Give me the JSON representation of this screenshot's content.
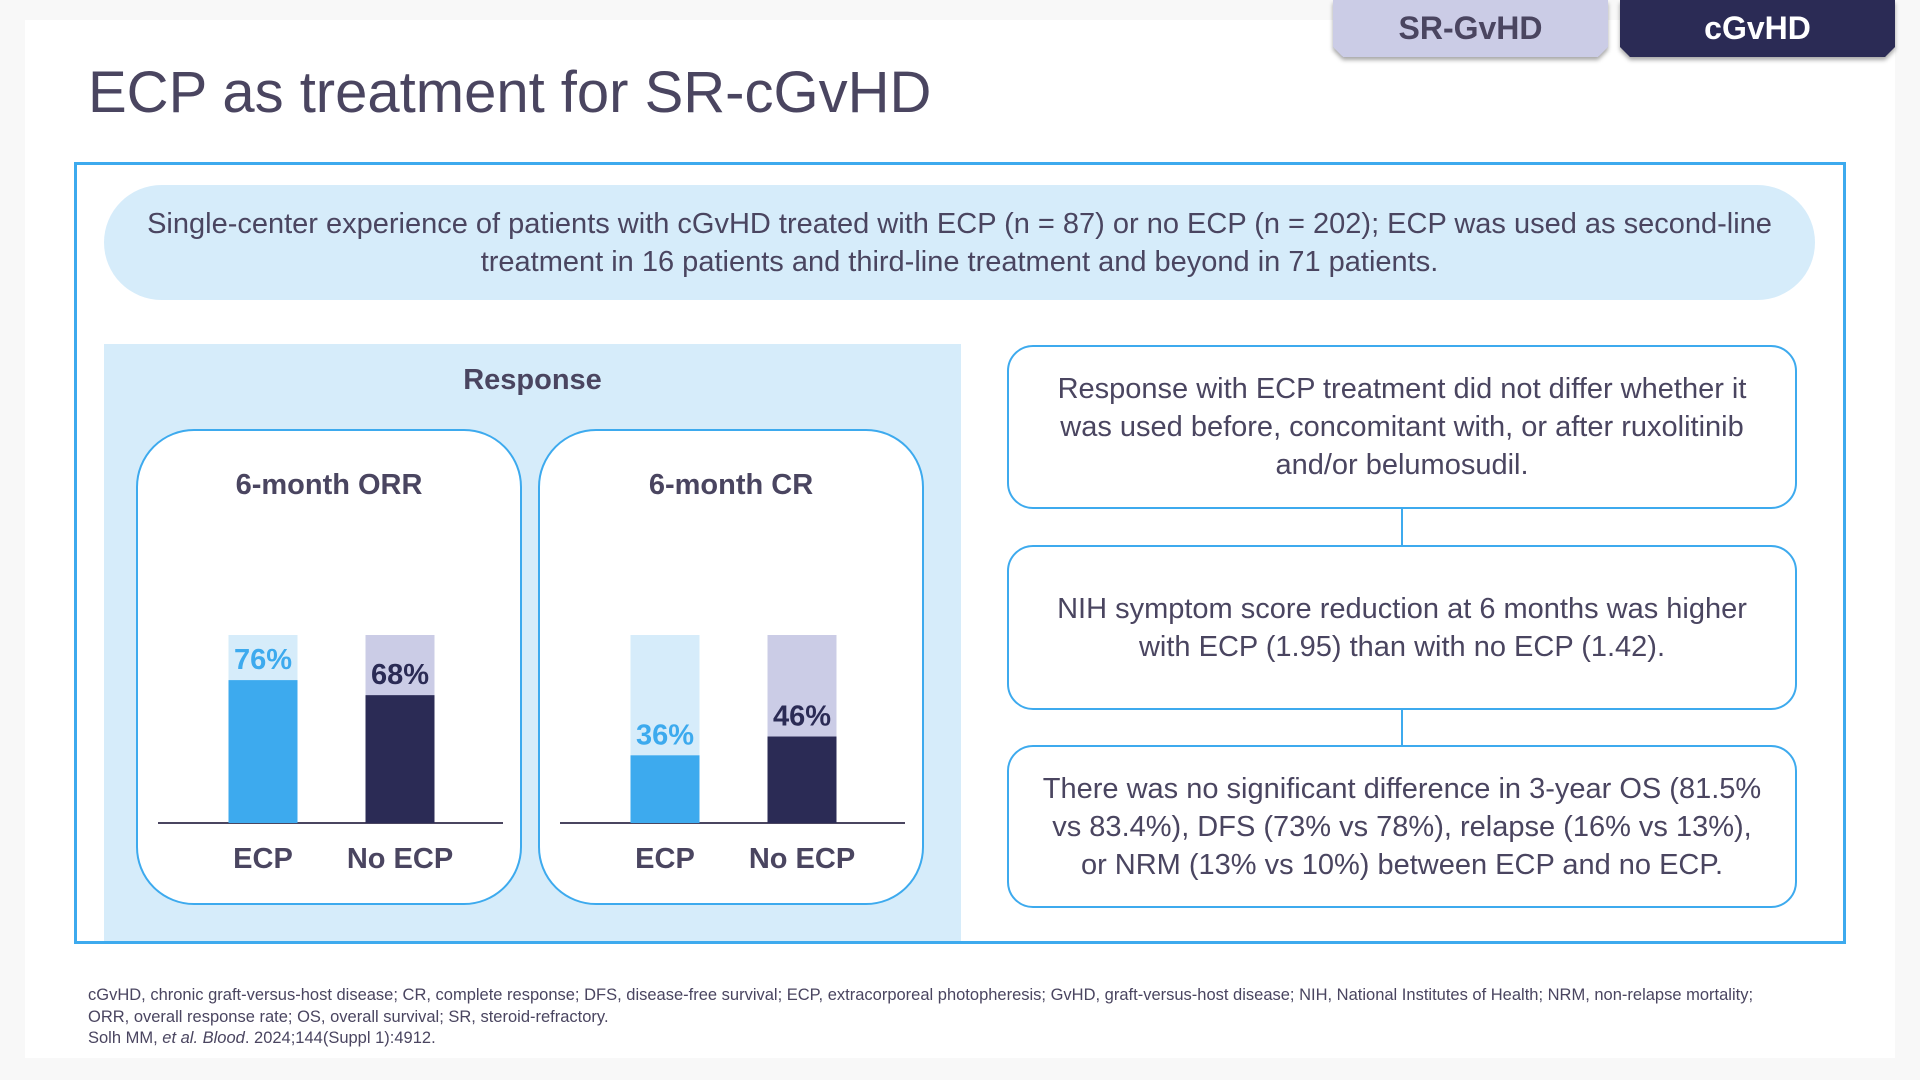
{
  "tabs": [
    {
      "label": "SR-GvHD",
      "active": false
    },
    {
      "label": "cGvHD",
      "active": true
    }
  ],
  "title": "ECP as treatment for SR-cGvHD",
  "banner": "Single-center experience of patients with cGvHD treated with ECP (n = 87) or no ECP (n = 202); ECP was used as second-line treatment in 16 patients and third-line treatment and beyond in 71 patients.",
  "response_panel": {
    "title": "Response"
  },
  "colors": {
    "ecp_fill": "#3daaee",
    "ecp_track": "#d6ecfa",
    "noecp_fill": "#2b2b55",
    "noecp_track": "#cbcce6",
    "ecp_label": "#3daaee",
    "noecp_label": "#2b2b55",
    "accent_border": "#3daaee"
  },
  "chart_data": [
    {
      "type": "bar",
      "title": "6-month ORR",
      "categories": [
        "ECP",
        "No ECP"
      ],
      "values": [
        76,
        68
      ],
      "value_labels": [
        "76%",
        "68%"
      ],
      "ylim": [
        0,
        100
      ],
      "xlabel": "",
      "ylabel": ""
    },
    {
      "type": "bar",
      "title": "6-month CR",
      "categories": [
        "ECP",
        "No ECP"
      ],
      "values": [
        36,
        46
      ],
      "value_labels": [
        "36%",
        "46%"
      ],
      "ylim": [
        0,
        100
      ],
      "xlabel": "",
      "ylabel": ""
    }
  ],
  "findings": [
    "Response with ECP treatment did not differ whether it was used before, concomitant with, or after ruxolitinib and/or belumosudil.",
    "NIH symptom score reduction at 6 months was higher with ECP (1.95) than with no ECP (1.42).",
    "There was no significant difference in 3-year OS (81.5% vs 83.4%), DFS (73% vs 78%), relapse (16% vs 13%), or NRM (13% vs 10%) between ECP and no ECP."
  ],
  "footnote": {
    "line1": "cGvHD, chronic graft-versus-host disease; CR, complete response; DFS, disease-free survival; ECP, extracorporeal photopheresis; GvHD, graft-versus-host disease; NIH, National Institutes of Health; NRM, non-relapse mortality;",
    "line2": "ORR, overall response rate; OS, overall survival; SR, steroid-refractory.",
    "ref_authors": "Solh MM, ",
    "ref_etal": "et al. Blood",
    "ref_rest": ". 2024;144(Suppl 1):4912."
  }
}
